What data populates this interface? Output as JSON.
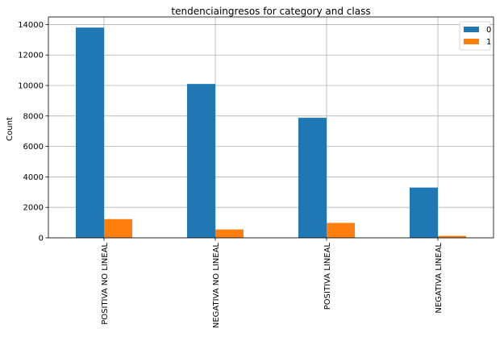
{
  "chart_data": {
    "type": "bar",
    "title": "tendenciaingresos for category and class",
    "xlabel": "",
    "ylabel": "Count",
    "categories": [
      "POSITIVA NO LINEAL",
      "NEGATIVA NO LINEAL",
      "POSITIVA LINEAL",
      "NEGATIVA LINEAL"
    ],
    "series": [
      {
        "name": "0",
        "color": "#1f77b4",
        "values": [
          13800,
          10100,
          7880,
          3300
        ]
      },
      {
        "name": "1",
        "color": "#ff7f0e",
        "values": [
          1230,
          550,
          980,
          130
        ]
      }
    ],
    "ylim": [
      0,
      14500
    ],
    "yticks": [
      0,
      2000,
      4000,
      6000,
      8000,
      10000,
      12000,
      14000
    ],
    "ytick_labels": [
      "0",
      "2000",
      "4000",
      "6000",
      "8000",
      "10000",
      "12000",
      "14000"
    ],
    "grid": true,
    "legend_position": "top-right"
  }
}
